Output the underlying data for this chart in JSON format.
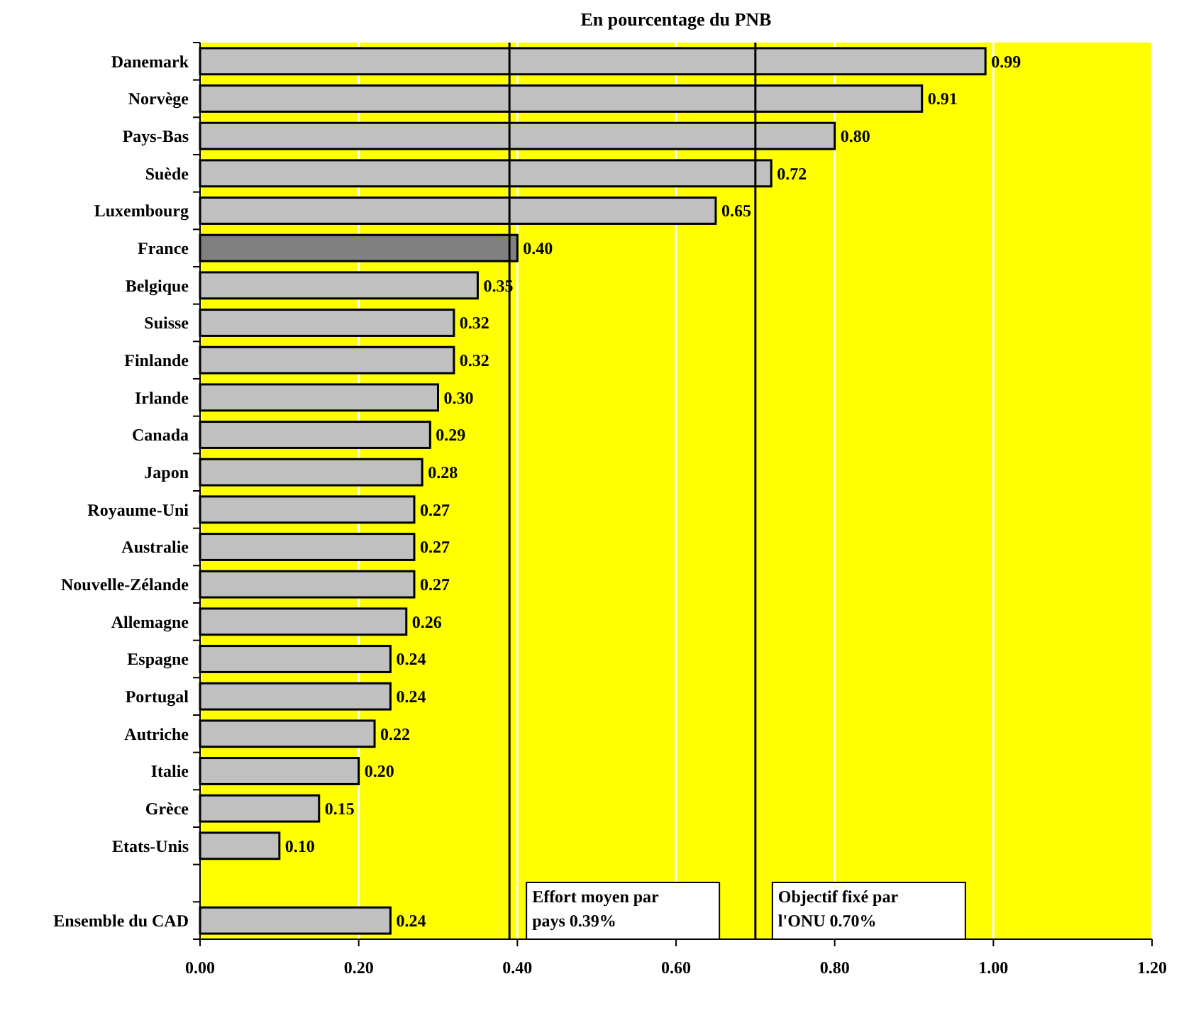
{
  "chart_data": {
    "type": "bar",
    "orientation": "horizontal",
    "title": "En pourcentage du PNB",
    "categories": [
      "Danemark",
      "Norvège",
      "Pays-Bas",
      "Suède",
      "Luxembourg",
      "France",
      "Belgique",
      "Suisse",
      "Finlande",
      "Irlande",
      "Canada",
      "Japon",
      "Royaume-Uni",
      "Australie",
      "Nouvelle-Zélande",
      "Allemagne",
      "Espagne",
      "Portugal",
      "Autriche",
      "Italie",
      "Grèce",
      "Etats-Unis",
      null,
      "Ensemble du CAD"
    ],
    "values": [
      0.99,
      0.91,
      0.8,
      0.72,
      0.65,
      0.4,
      0.35,
      0.32,
      0.32,
      0.3,
      0.29,
      0.28,
      0.27,
      0.27,
      0.27,
      0.26,
      0.24,
      0.24,
      0.22,
      0.2,
      0.15,
      0.1,
      null,
      0.24
    ],
    "colors": [
      "#c0c0c0",
      "#c0c0c0",
      "#c0c0c0",
      "#c0c0c0",
      "#c0c0c0",
      "#808080",
      "#c0c0c0",
      "#c0c0c0",
      "#c0c0c0",
      "#c0c0c0",
      "#c0c0c0",
      "#c0c0c0",
      "#c0c0c0",
      "#c0c0c0",
      "#c0c0c0",
      "#c0c0c0",
      "#c0c0c0",
      "#c0c0c0",
      "#c0c0c0",
      "#c0c0c0",
      "#c0c0c0",
      "#c0c0c0",
      null,
      "#c0c0c0"
    ],
    "value_labels": [
      "0.99",
      "0.91",
      "0.80",
      "0.72",
      "0.65",
      "0.40",
      "0.35",
      "0.32",
      "0.32",
      "0.30",
      "0.29",
      "0.28",
      "0.27",
      "0.27",
      "0.27",
      "0.26",
      "0.24",
      "0.24",
      "0.22",
      "0.20",
      "0.15",
      "0.10",
      null,
      "0.24"
    ],
    "xlim": [
      0,
      1.2
    ],
    "xticks": [
      {
        "value": 0,
        "label": "0.00"
      },
      {
        "value": 0.2,
        "label": "0.20"
      },
      {
        "value": 0.4,
        "label": "0.40"
      },
      {
        "value": 0.6,
        "label": "0.60"
      },
      {
        "value": 0.8,
        "label": "0.80"
      },
      {
        "value": 1.0,
        "label": "1.00"
      },
      {
        "value": 1.2,
        "label": "1.20"
      }
    ],
    "grid": "x",
    "ref_lines": [
      {
        "axis": "x",
        "value": 0.39,
        "label": "Effort moyen par pays 0.39%",
        "color": "#000000"
      },
      {
        "axis": "x",
        "value": 0.7,
        "label": "Objectif fixé par l'ONU 0.70%",
        "color": "#000000"
      }
    ]
  }
}
